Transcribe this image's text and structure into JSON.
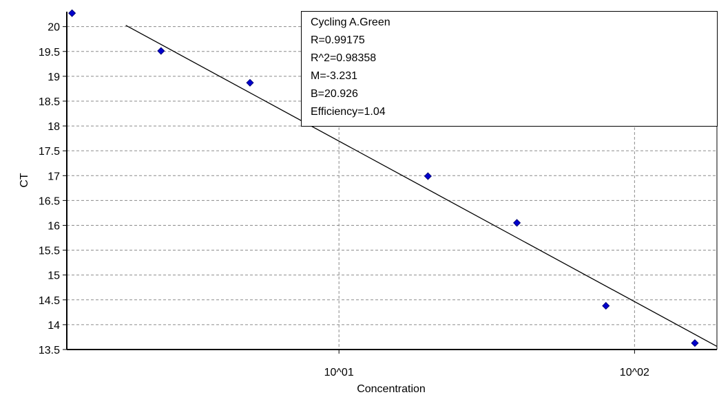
{
  "chart_data": {
    "type": "scatter",
    "xlabel": "Concentration",
    "ylabel": "CT",
    "x_scale": "log",
    "xlim": [
      1.2,
      190
    ],
    "ylim": [
      13.5,
      20.3
    ],
    "x_ticks": [
      {
        "value": 10,
        "label": "10^01"
      },
      {
        "value": 100,
        "label": "10^02"
      }
    ],
    "y_ticks": [
      13.5,
      14,
      14.5,
      15,
      15.5,
      16,
      16.5,
      17,
      17.5,
      18,
      18.5,
      19,
      19.5,
      20
    ],
    "grid": true,
    "points": [
      {
        "x": 1.25,
        "y": 20.27
      },
      {
        "x": 2.5,
        "y": 19.51
      },
      {
        "x": 5,
        "y": 18.87
      },
      {
        "x": 20,
        "y": 16.99
      },
      {
        "x": 40,
        "y": 16.05
      },
      {
        "x": 80,
        "y": 14.38
      },
      {
        "x": 160,
        "y": 13.63
      }
    ],
    "fit_line": {
      "slope": -3.231,
      "intercept": 20.926,
      "x_range": [
        1.9,
        190
      ]
    },
    "stats": {
      "title": "Cycling A.Green",
      "r": "R=0.99175",
      "r2": "R^2=0.98358",
      "m": "M=-3.231",
      "b": "B=20.926",
      "efficiency": "Efficiency=1.04"
    }
  }
}
